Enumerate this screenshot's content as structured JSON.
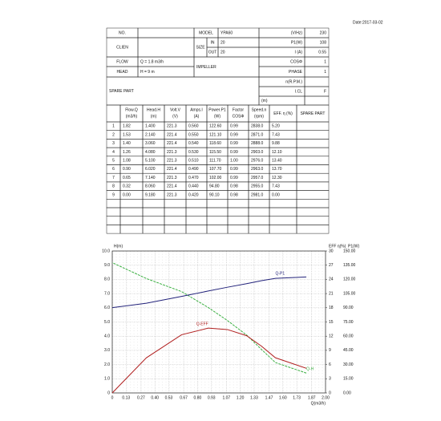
{
  "date": "Date:2017-03-02",
  "header": {
    "no": "NO.",
    "model_label": "MODEL",
    "model": "YPA60",
    "voltage_label": "(V/Hz)",
    "voltage": "230",
    "client_label": "CLIEN",
    "size_label": "SIZE",
    "in_label": "IN",
    "in": "20",
    "out_label": "OUT",
    "out": "20",
    "p1_label": "P1(W)",
    "p1": "108",
    "i_label": "I (A)",
    "i": "0.55",
    "flow_label": "FLOW",
    "flow": "Q = 1.8 m3/h",
    "impeller_label": "IMPELLER",
    "cos_label": "COSΦ",
    "cos": "1",
    "head_label": "HEAD",
    "head": "H = 9 m",
    "phase_label": "PHASE",
    "phase": "1",
    "spare_label": "SPARE PART",
    "rpm_label": "n(R.P.M.)",
    "icl_label": "I.CL",
    "icl": "F",
    "m_label": "(m)"
  },
  "table": {
    "columns": [
      {
        "name": "Flow.Q",
        "unit": "(m3/h)"
      },
      {
        "name": "Head.H",
        "unit": "(m)"
      },
      {
        "name": "Volt.V",
        "unit": "(V)"
      },
      {
        "name": "Amps.I",
        "unit": "(A)"
      },
      {
        "name": "Power.P1",
        "unit": "(W)"
      },
      {
        "name": "Factor",
        "unit": "COSΦ"
      },
      {
        "name": "Speed.n",
        "unit": "(rpm)"
      },
      {
        "name": "EFF. η (%)"
      },
      {
        "name": "SPARE PART"
      }
    ],
    "rows": [
      [
        "1",
        "1.82",
        "1.400",
        "221.3",
        "0.560",
        "122.60",
        "0.99",
        "2838.0",
        "5.20"
      ],
      [
        "2",
        "1.53",
        "2.140",
        "221.4",
        "0.550",
        "121.10",
        "0.99",
        "2871.0",
        "7.43"
      ],
      [
        "3",
        "1.40",
        "3.060",
        "221.4",
        "0.540",
        "118.60",
        "0.99",
        "2888.0",
        "9.88"
      ],
      [
        "4",
        "1.26",
        "4.080",
        "221.3",
        "0.530",
        "115.50",
        "0.99",
        "2903.0",
        "12.10"
      ],
      [
        "5",
        "1.08",
        "5.100",
        "221.3",
        "0.510",
        "111.70",
        "1.00",
        "2976.0",
        "13.40"
      ],
      [
        "6",
        "0.90",
        "6.020",
        "221.4",
        "0.490",
        "107.70",
        "0.99",
        "2963.0",
        "13.70"
      ],
      [
        "7",
        "0.65",
        "7.140",
        "221.3",
        "0.470",
        "102.00",
        "0.99",
        "2957.0",
        "12.30"
      ],
      [
        "8",
        "0.32",
        "8.060",
        "221.4",
        "0.440",
        "94.80",
        "0.98",
        "2955.0",
        "7.43"
      ],
      [
        "9",
        "0.00",
        "9.180",
        "221.3",
        "0.420",
        "90.10",
        "0.98",
        "2981.0",
        "0.00"
      ]
    ]
  },
  "chart_data": {
    "type": "line",
    "x_label": "Q(m3/h)",
    "y_label": "H(m)",
    "y2_label": "EFF η(%)",
    "y3_label": "P1(W)",
    "x": [
      1.82,
      1.53,
      1.4,
      1.26,
      1.08,
      0.9,
      0.65,
      0.32,
      0.0
    ],
    "series": [
      {
        "name": "Q-H",
        "color": "#3cb043",
        "values": [
          1.4,
          2.14,
          3.06,
          4.08,
          5.1,
          6.02,
          7.14,
          8.06,
          9.18
        ]
      },
      {
        "name": "Q-P1",
        "color": "#22227a",
        "axis": "y3",
        "values": [
          122.6,
          121.1,
          118.6,
          115.5,
          111.7,
          107.7,
          102.0,
          94.8,
          90.1
        ]
      },
      {
        "name": "Q-EFF",
        "color": "#b01e1e",
        "axis": "y2",
        "values": [
          5.2,
          7.43,
          9.88,
          12.1,
          13.4,
          13.7,
          12.3,
          7.43,
          0.0
        ]
      }
    ],
    "xlim": [
      0,
      2
    ],
    "xticks": [
      0,
      0.13,
      0.27,
      {
        "value": 0.4,
        "label": "0.40"
      },
      0.53,
      0.67,
      {
        "value": 0.8,
        "label": "0.80"
      },
      0.93,
      1.07,
      {
        "value": 1.2,
        "label": "1.20"
      },
      1.33,
      1.47,
      {
        "value": 1.6,
        "label": "1.60"
      },
      1.73,
      1.87,
      {
        "value": 2,
        "label": "2.00"
      }
    ],
    "ylim": [
      0,
      10
    ],
    "yticks": [
      0,
      {
        "value": 1,
        "label": "1.0"
      },
      {
        "value": 2,
        "label": "2.0"
      },
      {
        "value": 3,
        "label": "3.0"
      },
      {
        "value": 4,
        "label": "4.0"
      },
      {
        "value": 5,
        "label": "5.0"
      },
      {
        "value": 6,
        "label": "6.0"
      },
      {
        "value": 7,
        "label": "7.0"
      },
      {
        "value": 8,
        "label": "8.0"
      },
      {
        "value": 9,
        "label": "9.0"
      },
      {
        "value": 10,
        "label": "10.0"
      }
    ],
    "y2lim": [
      0,
      30
    ],
    "y2ticks": [
      0,
      3,
      6,
      9,
      12,
      15,
      18,
      21,
      24,
      27,
      30
    ],
    "y3lim": [
      0,
      150
    ],
    "y3ticks": [
      {
        "value": 0,
        "label": "0.00"
      },
      {
        "value": 15,
        "label": "15.00"
      },
      {
        "value": 30,
        "label": "30.00"
      },
      {
        "value": 45,
        "label": "45.00"
      },
      {
        "value": 60,
        "label": "60.00"
      },
      {
        "value": 75,
        "label": "75.00"
      },
      {
        "value": 90,
        "label": "90.00"
      },
      {
        "value": 105,
        "label": "105.00"
      },
      {
        "value": 120,
        "label": "120.00"
      },
      {
        "value": 135,
        "label": "135.00"
      },
      {
        "value": 150,
        "label": "150.00"
      }
    ],
    "grid": true
  }
}
